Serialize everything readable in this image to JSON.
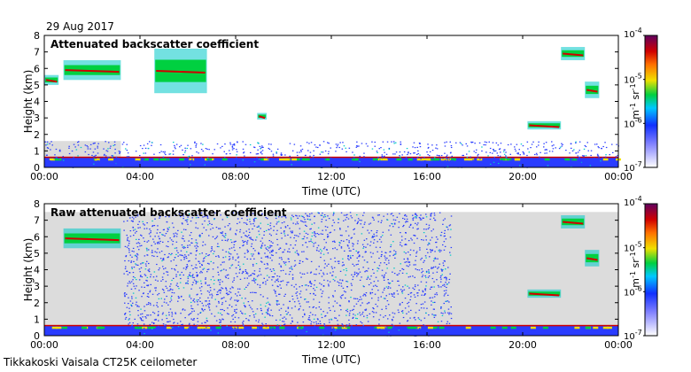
{
  "date_label": "29 Aug 2017",
  "footer": "Tikkakoski Vaisala CT25K ceilometer",
  "colors": {
    "background_fill": "#dcdcdc",
    "noise": "#2a3cff",
    "cloud_low": "#00c8c8",
    "cloud_mid": "#00d040",
    "cloud_high": "#f0e000",
    "peak": "#d00000"
  },
  "chart_data": [
    {
      "type": "heatmap",
      "title": "Attenuated backscatter coefficient",
      "xlabel": "Time (UTC)",
      "ylabel": "Height (km)",
      "xlim": [
        "00:00",
        "24:00"
      ],
      "x_ticks": [
        "00:00",
        "04:00",
        "08:00",
        "12:00",
        "16:00",
        "20:00",
        "00:00"
      ],
      "ylim": [
        0,
        8
      ],
      "y_ticks": [
        0,
        1,
        2,
        3,
        4,
        5,
        6,
        7,
        8
      ],
      "colorbar": {
        "scale": "log",
        "range": [
          1e-07,
          0.0001
        ],
        "tick_labels": [
          "10-7",
          "10-6",
          "10-5",
          "10-4"
        ],
        "unit_label": "m-1 sr-1"
      },
      "features": [
        {
          "name": "cloud layer",
          "time_start_h": 0.8,
          "time_end_h": 3.2,
          "height_km": [
            5.3,
            6.5
          ]
        },
        {
          "name": "cloud patch",
          "time_start_h": 0.0,
          "time_end_h": 0.6,
          "height_km": [
            5.0,
            5.6
          ]
        },
        {
          "name": "cloud streaks",
          "time_start_h": 4.6,
          "time_end_h": 6.8,
          "height_km": [
            4.5,
            7.2
          ]
        },
        {
          "name": "cloud patch",
          "time_start_h": 8.9,
          "time_end_h": 9.3,
          "height_km": [
            2.9,
            3.3
          ]
        },
        {
          "name": "cloud layer",
          "time_start_h": 21.6,
          "time_end_h": 22.6,
          "height_km": [
            6.5,
            7.3
          ]
        },
        {
          "name": "cloud patch",
          "time_start_h": 22.6,
          "time_end_h": 23.2,
          "height_km": [
            4.2,
            5.2
          ]
        },
        {
          "name": "cloud layer",
          "time_start_h": 20.2,
          "time_end_h": 21.6,
          "height_km": [
            2.3,
            2.8
          ]
        },
        {
          "name": "boundary layer",
          "time_start_h": 0.0,
          "time_end_h": 24.0,
          "height_km": [
            0.0,
            0.6
          ]
        },
        {
          "name": "noise",
          "time_start_h": 0.0,
          "time_end_h": 24.0,
          "height_km": [
            0.0,
            1.6
          ]
        }
      ]
    },
    {
      "type": "heatmap",
      "title": "Raw attenuated backscatter coefficient",
      "xlabel": "Time (UTC)",
      "ylabel": "Height (km)",
      "xlim": [
        "00:00",
        "24:00"
      ],
      "x_ticks": [
        "00:00",
        "04:00",
        "08:00",
        "12:00",
        "16:00",
        "20:00",
        "00:00"
      ],
      "ylim": [
        0,
        8
      ],
      "y_ticks": [
        0,
        1,
        2,
        3,
        4,
        5,
        6,
        7,
        8
      ],
      "colorbar": {
        "scale": "log",
        "range": [
          1e-07,
          0.0001
        ],
        "tick_labels": [
          "10-7",
          "10-6",
          "10-5",
          "10-4"
        ],
        "unit_label": "m-1 sr-1"
      },
      "features": [
        {
          "name": "cloud layer",
          "time_start_h": 0.8,
          "time_end_h": 3.2,
          "height_km": [
            5.3,
            6.5
          ]
        },
        {
          "name": "cloud layer",
          "time_start_h": 21.6,
          "time_end_h": 22.6,
          "height_km": [
            6.5,
            7.3
          ]
        },
        {
          "name": "cloud patch",
          "time_start_h": 22.6,
          "time_end_h": 23.2,
          "height_km": [
            4.2,
            5.2
          ]
        },
        {
          "name": "cloud layer",
          "time_start_h": 20.2,
          "time_end_h": 21.6,
          "height_km": [
            2.3,
            2.8
          ]
        },
        {
          "name": "boundary layer",
          "time_start_h": 0.0,
          "time_end_h": 24.0,
          "height_km": [
            0.0,
            0.6
          ]
        },
        {
          "name": "noise",
          "time_start_h": 3.3,
          "time_end_h": 17.0,
          "height_km": [
            0.0,
            7.5
          ]
        }
      ]
    }
  ]
}
